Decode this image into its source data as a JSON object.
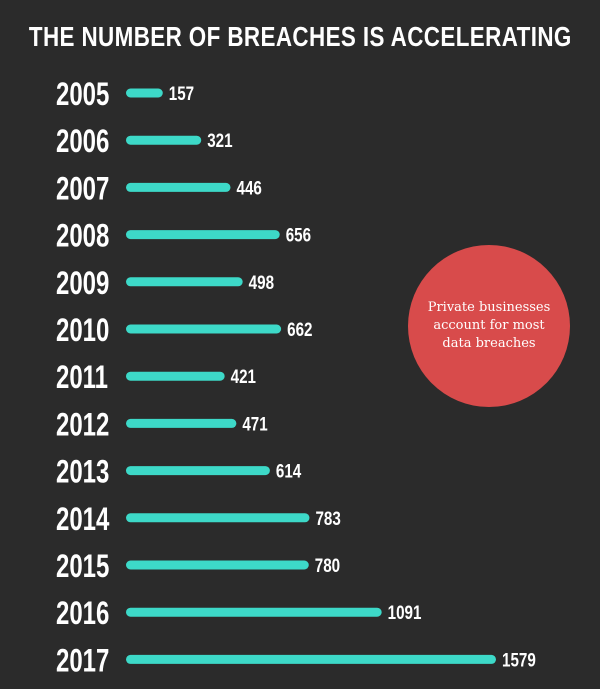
{
  "header": {
    "title": "THE NUMBER OF BREACHES IS ACCELERATING"
  },
  "colors": {
    "background": "#2b2b2b",
    "bar": "#3dd9c8",
    "accent_stripes": "#2fd3c4",
    "callout": "#d84b4b",
    "text": "#ffffff"
  },
  "callout": {
    "text": "Private businesses account for most data breaches"
  },
  "chart_data": {
    "type": "bar",
    "orientation": "horizontal",
    "title": "THE NUMBER OF BREACHES IS ACCELERATING",
    "categories": [
      "2005",
      "2006",
      "2007",
      "2008",
      "2009",
      "2010",
      "2011",
      "2012",
      "2013",
      "2014",
      "2015",
      "2016",
      "2017"
    ],
    "values": [
      157,
      321,
      446,
      656,
      498,
      662,
      421,
      471,
      614,
      783,
      780,
      1091,
      1579
    ],
    "xlabel": "",
    "ylabel": "",
    "grid": false,
    "data_labels": true
  }
}
